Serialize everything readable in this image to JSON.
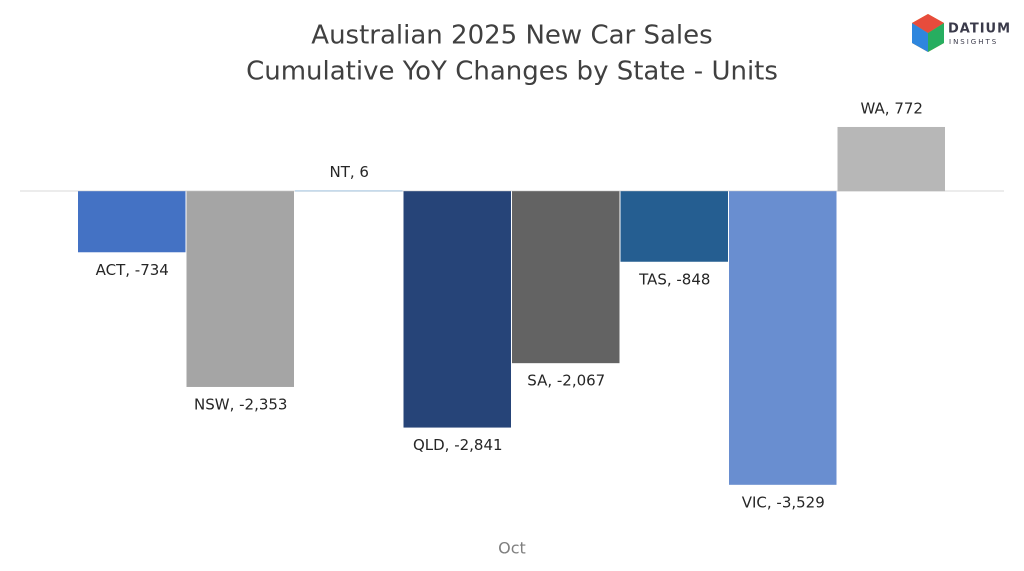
{
  "logo": {
    "name": "DATIUM",
    "tagline": "INSIGHTS"
  },
  "chart_data": {
    "type": "bar",
    "title": "Australian 2025 New Car Sales",
    "subtitle": "Cumulative YoY Changes by State - Units",
    "categories": [
      "Oct"
    ],
    "ylim": [
      -4000,
      1000
    ],
    "series": [
      {
        "color": "#4472c4",
        "values": [
          -734
        ],
        "value_labels": [
          "ACT, -734"
        ]
      },
      {
        "color": "#a5a5a5",
        "values": [
          -2353
        ],
        "value_labels": [
          "NSW, -2,353"
        ]
      },
      {
        "color": "#5b9bd5",
        "values": [
          6
        ],
        "value_labels": [
          "NT, 6"
        ]
      },
      {
        "color": "#264478",
        "values": [
          -2841
        ],
        "value_labels": [
          "QLD, -2,841"
        ]
      },
      {
        "color": "#636363",
        "values": [
          -2067
        ],
        "value_labels": [
          "SA, -2,067"
        ]
      },
      {
        "color": "#255e91",
        "values": [
          -848
        ],
        "value_labels": [
          "TAS, -848"
        ]
      },
      {
        "color": "#698ed0",
        "values": [
          -3529
        ],
        "value_labels": [
          "VIC, -3,529"
        ]
      },
      {
        "color": "#b7b7b7",
        "values": [
          772
        ],
        "value_labels": [
          "WA, 772"
        ]
      }
    ]
  }
}
